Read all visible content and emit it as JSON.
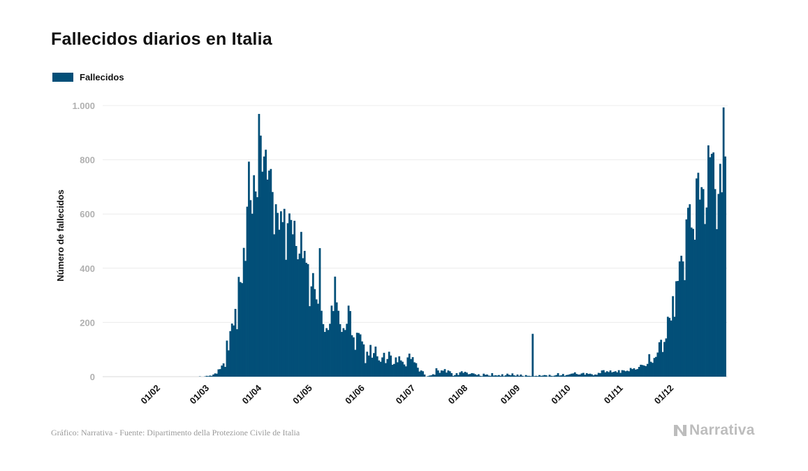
{
  "title": "Fallecidos diarios en Italia",
  "legend": {
    "label": "Fallecidos",
    "color": "#024f78"
  },
  "footer": {
    "source": "Gráfico: Narrativa - Fuente: Dipartimento della Protezione Civile de Italia",
    "brand": "Narrativa"
  },
  "chart_data": {
    "type": "bar",
    "title": "Fallecidos diarios en Italia",
    "xlabel": "",
    "ylabel": "Número de fallecidos",
    "ylim": [
      0,
      1000
    ],
    "yticks": [
      0,
      200,
      400,
      600,
      800,
      1000
    ],
    "ytick_labels": [
      "0",
      "200",
      "400",
      "600",
      "800",
      "1.000"
    ],
    "grid": true,
    "legend_position": "top-left",
    "bar_color": "#024f78",
    "start_date": "2020-01-01",
    "xtick_labels": [
      "01/02",
      "01/03",
      "01/04",
      "01/05",
      "01/06",
      "01/07",
      "01/08",
      "01/09",
      "01/10",
      "01/11",
      "01/12"
    ],
    "xtick_days": [
      31,
      60,
      91,
      121,
      152,
      182,
      213,
      244,
      274,
      305,
      335
    ],
    "series": [
      {
        "name": "Fallecidos",
        "first_day": 37,
        "values": [
          0,
          0,
          0,
          0,
          0,
          0,
          0,
          0,
          0,
          0,
          0,
          0,
          0,
          0,
          0,
          0,
          0,
          0,
          0,
          0,
          1,
          0,
          0,
          1,
          3,
          2,
          4,
          3,
          8,
          12,
          11,
          27,
          28,
          41,
          49,
          36,
          133,
          97,
          168,
          196,
          189,
          250,
          175,
          368,
          349,
          345,
          475,
          427,
          627,
          793,
          651,
          601,
          743,
          683,
          662,
          969,
          889,
          756,
          812,
          837,
          727,
          760,
          766,
          681,
          525,
          636,
          604,
          542,
          610,
          570,
          619,
          431,
          566,
          602,
          578,
          525,
          575,
          482,
          433,
          454,
          534,
          437,
          464,
          420,
          415,
          260,
          333,
          382,
          323,
          285,
          269,
          474,
          243,
          194,
          165,
          179,
          172,
          195,
          262,
          242,
          369,
          274,
          243,
          194,
          165,
          179,
          172,
          195,
          262,
          242,
          153,
          145,
          99,
          162,
          161,
          156,
          130,
          119,
          50,
          92,
          78,
          117,
          70,
          87,
          111,
          75,
          60,
          55,
          71,
          88,
          50,
          65,
          92,
          78,
          44,
          47,
          71,
          53,
          75,
          60,
          55,
          45,
          38,
          71,
          85,
          65,
          72,
          53,
          50,
          33,
          19,
          23,
          20,
          8,
          0,
          2,
          4,
          5,
          9,
          7,
          31,
          23,
          14,
          23,
          22,
          28,
          15,
          23,
          20,
          13,
          3,
          6,
          13,
          6,
          16,
          20,
          14,
          18,
          15,
          9,
          10,
          13,
          12,
          9,
          6,
          9,
          3,
          2,
          11,
          7,
          8,
          4,
          3,
          13,
          4,
          5,
          4,
          6,
          3,
          9,
          2,
          5,
          11,
          7,
          5,
          12,
          5,
          3,
          8,
          3,
          8,
          3,
          1,
          6,
          3,
          3,
          2,
          158,
          2,
          3,
          2,
          6,
          3,
          4,
          6,
          5,
          1,
          7,
          3,
          2,
          4,
          6,
          13,
          4,
          5,
          10,
          3,
          6,
          7,
          9,
          11,
          12,
          16,
          10,
          8,
          8,
          12,
          14,
          7,
          13,
          10,
          11,
          9,
          5,
          8,
          7,
          14,
          13,
          23,
          24,
          16,
          20,
          17,
          23,
          16,
          18,
          20,
          16,
          24,
          14,
          24,
          23,
          20,
          22,
          20,
          32,
          28,
          31,
          26,
          28,
          36,
          44,
          43,
          41,
          39,
          47,
          83,
          55,
          51,
          69,
          73,
          89,
          127,
          136,
          91,
          128,
          141,
          221,
          217,
          207,
          297,
          221,
          352,
          353,
          425,
          446,
          425,
          356,
          580,
          623,
          636,
          550,
          545,
          505,
          731,
          752,
          653,
          699,
          692,
          563,
          624,
          853,
          809,
          822,
          827,
          692,
          544,
          674,
          785,
          680,
          993,
          812
        ]
      }
    ]
  }
}
